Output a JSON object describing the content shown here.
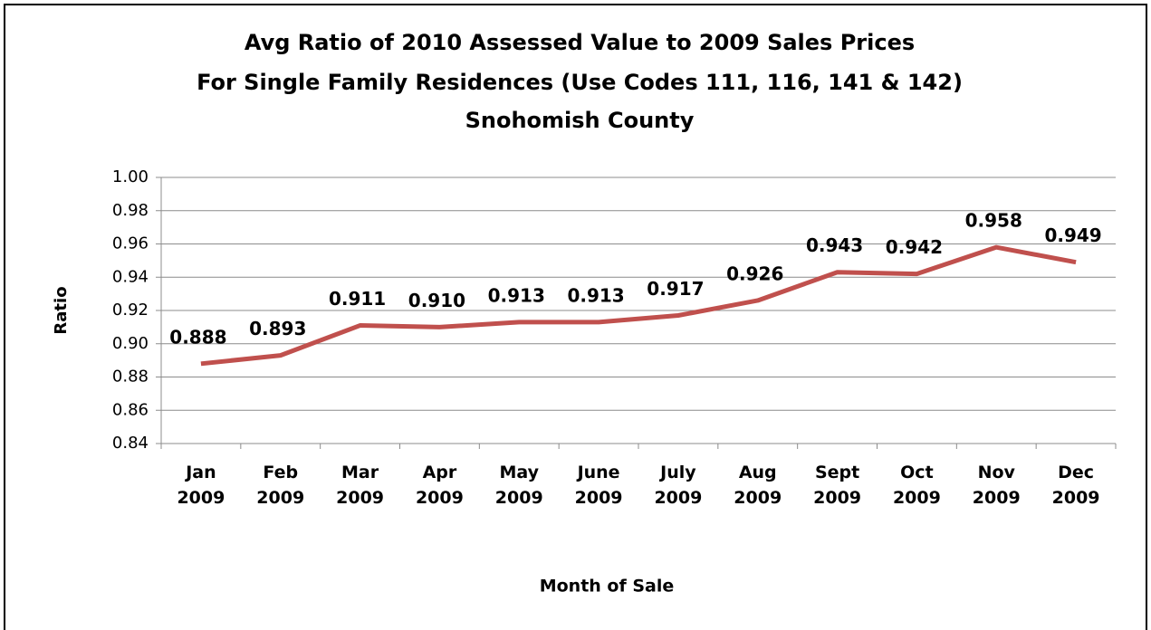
{
  "chart_data": {
    "type": "line",
    "title": [
      "Avg Ratio of 2010 Assessed Value to 2009 Sales Prices",
      "For Single Family Residences (Use Codes 111, 116, 141 & 142)",
      "Snohomish County"
    ],
    "xlabel": "Month of Sale",
    "ylabel": "Ratio",
    "categories": [
      "Jan 2009",
      "Feb 2009",
      "Mar 2009",
      "Apr 2009",
      "May 2009",
      "June 2009",
      "July 2009",
      "Aug 2009",
      "Sept 2009",
      "Oct 2009",
      "Nov 2009",
      "Dec 2009"
    ],
    "series": [
      {
        "name": "Ratio",
        "color": "#c0504d",
        "values": [
          0.888,
          0.893,
          0.911,
          0.91,
          0.913,
          0.913,
          0.917,
          0.926,
          0.943,
          0.942,
          0.958,
          0.949
        ],
        "value_labels": [
          "0.888",
          "0.893",
          "0.911",
          "0.910",
          "0.913",
          "0.913",
          "0.917",
          "0.926",
          "0.943",
          "0.942",
          "0.958",
          "0.949"
        ]
      }
    ],
    "ylim": [
      0.84,
      1.0
    ],
    "yticks": [
      {
        "value": 0.84,
        "label": "0.84"
      },
      {
        "value": 0.86,
        "label": "0.86"
      },
      {
        "value": 0.88,
        "label": "0.88"
      },
      {
        "value": 0.9,
        "label": "0.90"
      },
      {
        "value": 0.92,
        "label": "0.92"
      },
      {
        "value": 0.94,
        "label": "0.94"
      },
      {
        "value": 0.96,
        "label": "0.96"
      },
      {
        "value": 0.98,
        "label": "0.98"
      },
      {
        "value": 1.0,
        "label": "1.00"
      }
    ],
    "grid": true
  }
}
